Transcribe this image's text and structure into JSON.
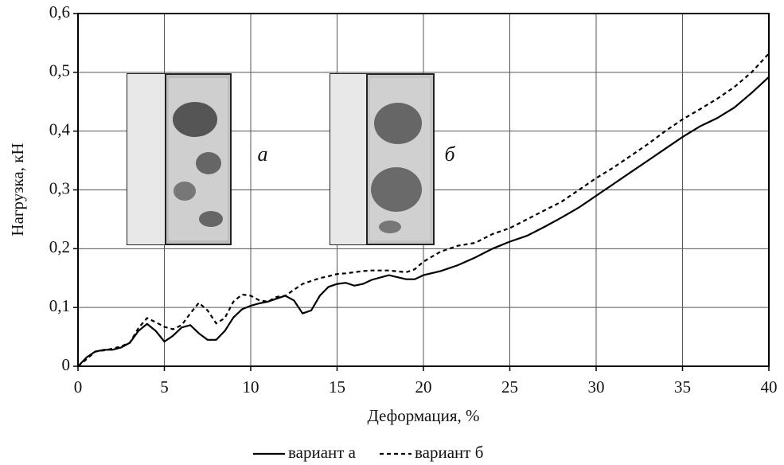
{
  "chart_data": {
    "type": "line",
    "x_label": "Деформация, %",
    "y_label": "Нагрузка, кН",
    "annotations": [
      "а",
      "б"
    ],
    "x": [
      0,
      0.5,
      1,
      1.5,
      2,
      2.5,
      3,
      3.5,
      4,
      4.5,
      5,
      5.5,
      6,
      6.5,
      7,
      7.5,
      8,
      8.5,
      9,
      9.5,
      10,
      10.5,
      11,
      11.5,
      12,
      12.5,
      13,
      13.5,
      14,
      14.5,
      15,
      15.5,
      16,
      16.5,
      17,
      18,
      19,
      19.5,
      20,
      21,
      22,
      23,
      24,
      25,
      26,
      27,
      28,
      29,
      30,
      31,
      32,
      33,
      34,
      35,
      36,
      37,
      38,
      39,
      40
    ],
    "series": [
      {
        "name": "вариант а",
        "color": "#000000",
        "style": "solid",
        "values": [
          0,
          0.015,
          0.025,
          0.028,
          0.028,
          0.032,
          0.04,
          0.06,
          0.072,
          0.06,
          0.042,
          0.052,
          0.066,
          0.07,
          0.056,
          0.045,
          0.045,
          0.06,
          0.083,
          0.097,
          0.103,
          0.107,
          0.11,
          0.115,
          0.12,
          0.112,
          0.09,
          0.095,
          0.12,
          0.135,
          0.14,
          0.142,
          0.137,
          0.14,
          0.147,
          0.155,
          0.148,
          0.148,
          0.155,
          0.162,
          0.172,
          0.185,
          0.2,
          0.212,
          0.222,
          0.237,
          0.253,
          0.27,
          0.29,
          0.31,
          0.33,
          0.35,
          0.37,
          0.39,
          0.408,
          0.422,
          0.44,
          0.465,
          0.492
        ]
      },
      {
        "name": "вариант б",
        "color": "#000000",
        "style": "dashed",
        "values": [
          0,
          0.012,
          0.025,
          0.027,
          0.03,
          0.034,
          0.04,
          0.065,
          0.082,
          0.075,
          0.067,
          0.063,
          0.07,
          0.09,
          0.108,
          0.095,
          0.073,
          0.082,
          0.11,
          0.122,
          0.12,
          0.112,
          0.11,
          0.118,
          0.12,
          0.13,
          0.14,
          0.145,
          0.15,
          0.153,
          0.157,
          0.158,
          0.16,
          0.162,
          0.163,
          0.163,
          0.16,
          0.165,
          0.178,
          0.195,
          0.205,
          0.21,
          0.225,
          0.235,
          0.25,
          0.265,
          0.28,
          0.3,
          0.32,
          0.338,
          0.358,
          0.378,
          0.4,
          0.42,
          0.437,
          0.455,
          0.475,
          0.5,
          0.532
        ]
      }
    ],
    "xlim": [
      0,
      40
    ],
    "xticks": [
      0,
      5,
      10,
      15,
      20,
      25,
      30,
      35,
      40
    ],
    "ylim": [
      0,
      0.6
    ],
    "yticks": [
      0,
      {
        "value": 0.1,
        "label": "0,1"
      },
      {
        "value": 0.2,
        "label": "0,2"
      },
      {
        "value": 0.3,
        "label": "0,3"
      },
      {
        "value": 0.4,
        "label": "0,4"
      },
      {
        "value": 0.5,
        "label": "0,5"
      },
      {
        "value": 0.6,
        "label": "0,6"
      }
    ],
    "grid": true,
    "legend": "bottom"
  }
}
